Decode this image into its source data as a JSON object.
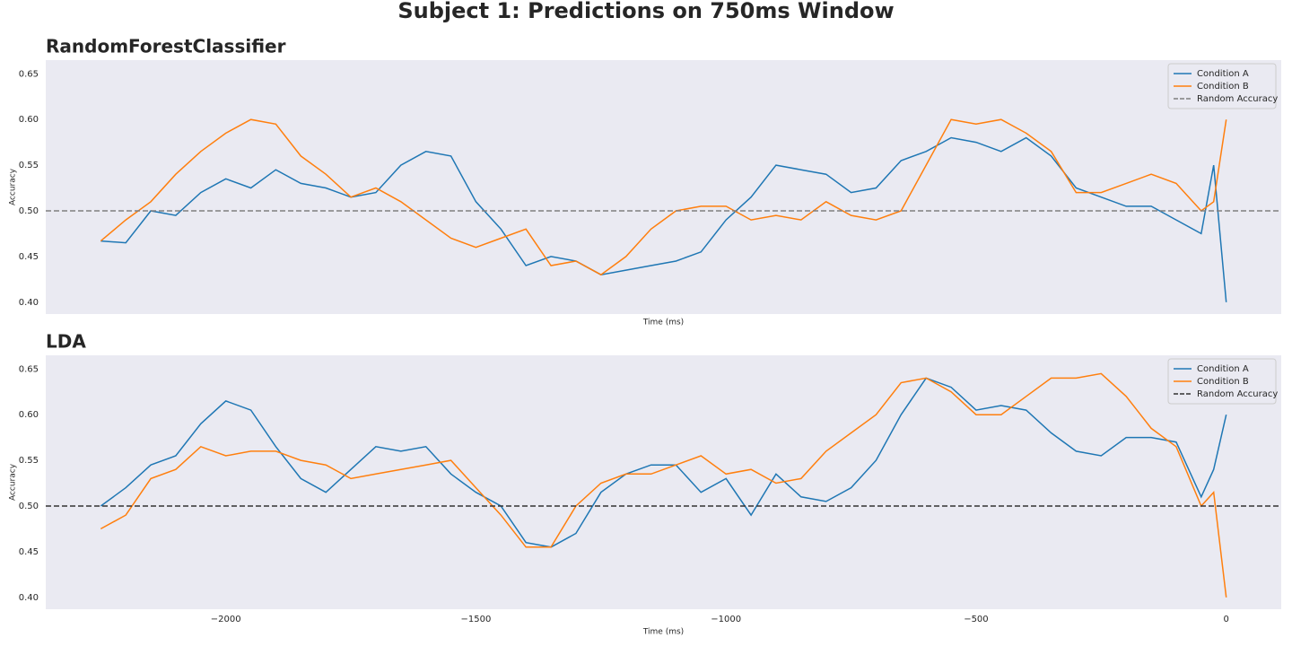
{
  "title": "Subject 1: Predictions on 750ms Window",
  "chart_data": [
    {
      "type": "line",
      "title": "RandomForestClassifier",
      "xlabel": "Time (ms)",
      "ylabel": "Accuracy",
      "grid": false,
      "legend": "upper right",
      "xlim": [
        -2360,
        110
      ],
      "ylim": [
        0.387,
        0.665
      ],
      "yticks": [
        {
          "value": 0.4,
          "label": "0.40"
        },
        0.45,
        {
          "value": 0.5,
          "label": "0.50"
        },
        0.55,
        {
          "value": 0.6,
          "label": "0.60"
        },
        0.65
      ],
      "x": [
        -2250,
        -2200,
        -2150,
        -2100,
        -2050,
        -2000,
        -1950,
        -1900,
        -1850,
        -1800,
        -1750,
        -1700,
        -1650,
        -1600,
        -1550,
        -1500,
        -1450,
        -1400,
        -1350,
        -1300,
        -1250,
        -1200,
        -1150,
        -1100,
        -1050,
        -1000,
        -950,
        -900,
        -850,
        -800,
        -750,
        -700,
        -650,
        -600,
        -550,
        -500,
        -450,
        -400,
        -350,
        -300,
        -250,
        -200,
        -150,
        -100,
        -50,
        -25,
        0
      ],
      "series": [
        {
          "name": "Condition A",
          "color": "#1f77b4",
          "values": [
            0.467,
            0.465,
            0.5,
            0.495,
            0.52,
            0.535,
            0.525,
            0.545,
            0.53,
            0.525,
            0.515,
            0.52,
            0.55,
            0.565,
            0.56,
            0.51,
            0.48,
            0.44,
            0.45,
            0.445,
            0.43,
            0.435,
            0.44,
            0.445,
            0.455,
            0.49,
            0.515,
            0.55,
            0.545,
            0.54,
            0.52,
            0.525,
            0.555,
            0.565,
            0.58,
            0.575,
            0.565,
            0.58,
            0.56,
            0.525,
            0.515,
            0.505,
            0.505,
            0.49,
            0.475,
            0.55,
            0.4
          ]
        },
        {
          "name": "Condition B",
          "color": "#ff7f0e",
          "values": [
            0.467,
            0.49,
            0.51,
            0.54,
            0.565,
            0.585,
            0.6,
            0.595,
            0.56,
            0.54,
            0.515,
            0.525,
            0.51,
            0.49,
            0.47,
            0.46,
            0.47,
            0.48,
            0.44,
            0.445,
            0.43,
            0.45,
            0.48,
            0.5,
            0.505,
            0.505,
            0.49,
            0.495,
            0.49,
            0.51,
            0.495,
            0.49,
            0.5,
            0.55,
            0.6,
            0.595,
            0.6,
            0.585,
            0.565,
            0.52,
            0.52,
            0.53,
            0.54,
            0.53,
            0.5,
            0.51,
            0.6
          ]
        }
      ],
      "hline": {
        "name": "Random Accuracy",
        "value": 0.5,
        "color": "#7f7f7f"
      }
    },
    {
      "type": "line",
      "title": "LDA",
      "xlabel": "Time (ms)",
      "ylabel": "Accuracy",
      "grid": false,
      "legend": "upper right",
      "xlim": [
        -2360,
        110
      ],
      "ylim": [
        0.387,
        0.665
      ],
      "xticks": [
        {
          "value": -2000,
          "label": "−2000"
        },
        {
          "value": -1500,
          "label": "−1500"
        },
        {
          "value": -1000,
          "label": "−1000"
        },
        {
          "value": -500,
          "label": "−500"
        },
        0
      ],
      "yticks": [
        {
          "value": 0.4,
          "label": "0.40"
        },
        0.45,
        {
          "value": 0.5,
          "label": "0.50"
        },
        0.55,
        {
          "value": 0.6,
          "label": "0.60"
        },
        0.65
      ],
      "x": [
        -2250,
        -2200,
        -2150,
        -2100,
        -2050,
        -2000,
        -1950,
        -1900,
        -1850,
        -1800,
        -1750,
        -1700,
        -1650,
        -1600,
        -1550,
        -1500,
        -1450,
        -1400,
        -1350,
        -1300,
        -1250,
        -1200,
        -1150,
        -1100,
        -1050,
        -1000,
        -950,
        -900,
        -850,
        -800,
        -750,
        -700,
        -650,
        -600,
        -550,
        -500,
        -450,
        -400,
        -350,
        -300,
        -250,
        -200,
        -150,
        -100,
        -50,
        -25,
        0
      ],
      "series": [
        {
          "name": "Condition A",
          "color": "#1f77b4",
          "values": [
            0.5,
            0.52,
            0.545,
            0.555,
            0.59,
            0.615,
            0.605,
            0.565,
            0.53,
            0.515,
            0.54,
            0.565,
            0.56,
            0.565,
            0.535,
            0.515,
            0.5,
            0.46,
            0.455,
            0.47,
            0.515,
            0.535,
            0.545,
            0.545,
            0.515,
            0.53,
            0.49,
            0.535,
            0.51,
            0.505,
            0.52,
            0.55,
            0.6,
            0.64,
            0.63,
            0.605,
            0.61,
            0.605,
            0.58,
            0.56,
            0.555,
            0.575,
            0.575,
            0.57,
            0.51,
            0.54,
            0.6
          ]
        },
        {
          "name": "Condition B",
          "color": "#ff7f0e",
          "values": [
            0.475,
            0.49,
            0.53,
            0.54,
            0.565,
            0.555,
            0.56,
            0.56,
            0.55,
            0.545,
            0.53,
            0.535,
            0.54,
            0.545,
            0.55,
            0.52,
            0.49,
            0.455,
            0.455,
            0.5,
            0.525,
            0.535,
            0.535,
            0.545,
            0.555,
            0.535,
            0.54,
            0.525,
            0.53,
            0.56,
            0.58,
            0.6,
            0.635,
            0.64,
            0.625,
            0.6,
            0.6,
            0.62,
            0.64,
            0.64,
            0.645,
            0.62,
            0.585,
            0.565,
            0.5,
            0.515,
            0.4
          ]
        }
      ],
      "hline": {
        "name": "Random Accuracy",
        "value": 0.5,
        "color": "#333333"
      }
    }
  ]
}
